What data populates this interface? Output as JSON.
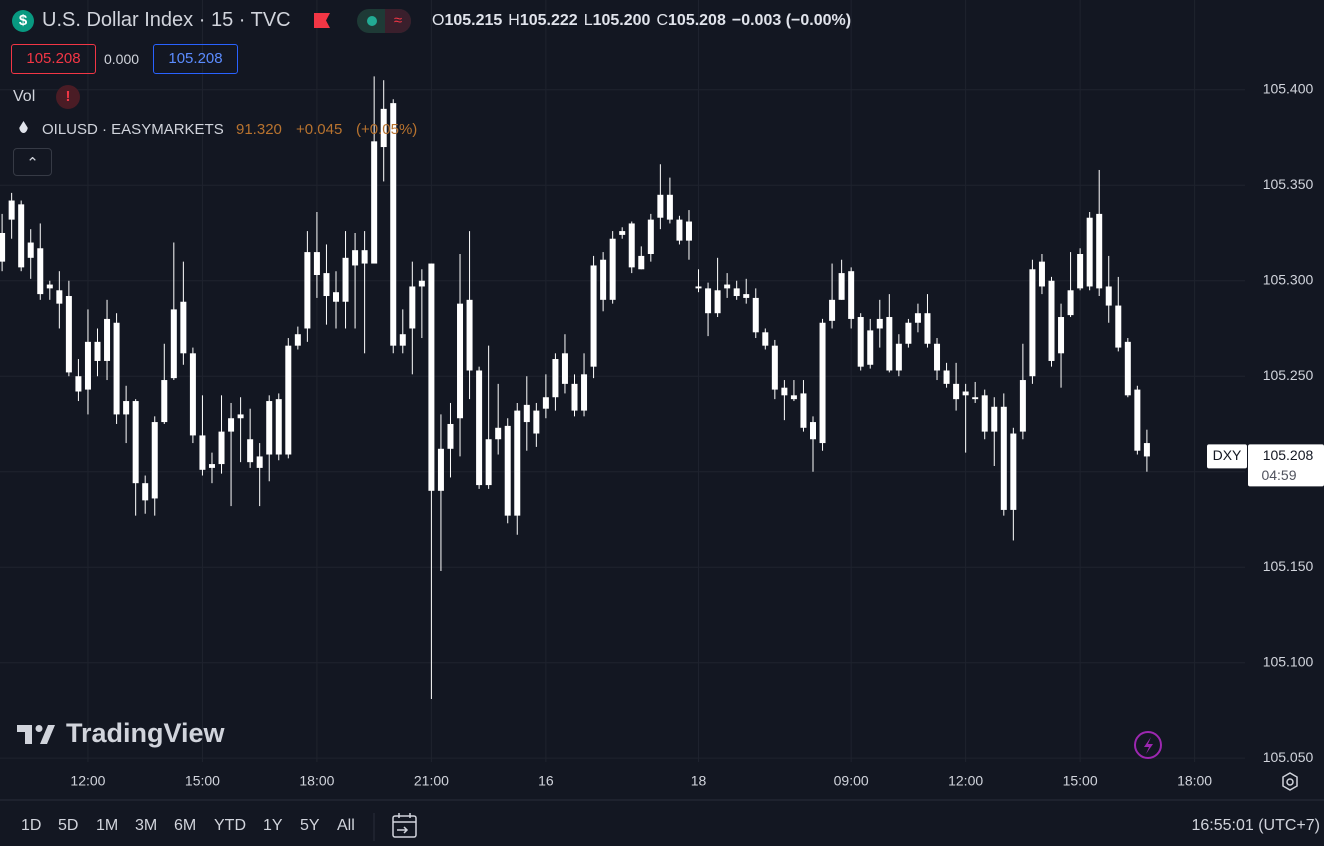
{
  "header": {
    "title": "U.S. Dollar Index · 15 · TVC",
    "ohlc": [
      {
        "label": "O",
        "value": "105.215"
      },
      {
        "label": "H",
        "value": "105.222"
      },
      {
        "label": "L",
        "value": "105.200"
      },
      {
        "label": "C",
        "value": "105.208"
      }
    ],
    "change": "−0.003 (−0.00%)",
    "bid": "105.208",
    "spread": "0.000",
    "ask": "105.208",
    "volume_label": "Vol",
    "compare": {
      "name": "OILUSD · EASYMARKETS",
      "price": "91.320",
      "change": "+0.045",
      "change_pct": "(+0.05%)"
    }
  },
  "watermark": "TradingView",
  "toolbar": {
    "ranges": [
      "1D",
      "5D",
      "1M",
      "3M",
      "6M",
      "YTD",
      "1Y",
      "5Y",
      "All"
    ],
    "clock": "16:55:01 (UTC+7)"
  },
  "chart_data": {
    "type": "candlestick",
    "color": "#ffffff",
    "grid": true,
    "categories": [
      null,
      null,
      null,
      null,
      null,
      null,
      null,
      null,
      null,
      "12:00",
      null,
      null,
      null,
      null,
      null,
      null,
      null,
      null,
      null,
      null,
      null,
      "15:00",
      null,
      null,
      null,
      null,
      null,
      null,
      null,
      null,
      null,
      null,
      null,
      "18:00",
      null,
      null,
      null,
      null,
      null,
      null,
      null,
      null,
      null,
      null,
      null,
      "21:00",
      null,
      null,
      null,
      null,
      null,
      null,
      null,
      null,
      null,
      null,
      null,
      "16",
      null,
      null,
      null,
      null,
      null,
      null,
      null,
      null,
      null,
      null,
      null,
      null,
      null,
      null,
      null,
      "18",
      null,
      null,
      null,
      null,
      null,
      null,
      null,
      null,
      null,
      null,
      null,
      null,
      null,
      null,
      null,
      "09:00",
      null,
      null,
      null,
      null,
      null,
      null,
      null,
      null,
      null,
      null,
      null,
      "12:00",
      null,
      null,
      null,
      null,
      null,
      null,
      null,
      null,
      null,
      null,
      null,
      "15:00",
      null,
      null,
      null,
      null,
      null,
      null,
      null,
      null,
      null,
      null,
      null,
      "18:00"
    ],
    "open": [
      105.325,
      105.332,
      105.34,
      105.312,
      105.317,
      105.296,
      105.295,
      105.292,
      105.25,
      105.243,
      105.268,
      105.258,
      105.278,
      105.23,
      105.237,
      105.194,
      105.186,
      105.226,
      105.249,
      105.289,
      105.262,
      105.219,
      105.202,
      105.204,
      105.221,
      105.228,
      105.217,
      105.208,
      105.209,
      105.238,
      105.209,
      105.266,
      105.275,
      105.315,
      105.304,
      105.294,
      105.289,
      105.308,
      105.316,
      105.309,
      105.37,
      105.393,
      105.266,
      105.275,
      105.297,
      105.309,
      105.19,
      105.212,
      105.228,
      105.29,
      105.253,
      105.193,
      105.217,
      105.224,
      105.177,
      105.235,
      105.22,
      105.233,
      105.239,
      105.262,
      105.246,
      105.232,
      105.255,
      105.311,
      105.29,
      105.324,
      105.33,
      105.306,
      105.314,
      105.333,
      105.345,
      105.332,
      105.321,
      105.296,
      105.296,
      105.283,
      105.298,
      105.296,
      105.293,
      105.291,
      105.273,
      105.266,
      105.244,
      105.24,
      105.241,
      105.226,
      105.215,
      105.279,
      105.29,
      105.305,
      105.281,
      105.256,
      105.275,
      105.281,
      105.253,
      105.267,
      105.278,
      105.283,
      105.267,
      105.253,
      105.246,
      105.242,
      105.239,
      105.24,
      105.221,
      105.234,
      105.18,
      105.221,
      105.25,
      105.31,
      105.3,
      105.262,
      105.282,
      105.296,
      105.297,
      105.335,
      105.297,
      105.287,
      105.268,
      105.243,
      105.215,
      null,
      null,
      null,
      null,
      null
    ],
    "high": [
      105.335,
      105.346,
      105.342,
      105.327,
      105.33,
      105.3,
      105.305,
      105.3,
      105.259,
      105.285,
      105.275,
      105.29,
      105.283,
      105.245,
      105.238,
      105.198,
      105.229,
      105.267,
      105.32,
      105.31,
      105.265,
      105.24,
      105.21,
      105.24,
      105.236,
      105.239,
      105.233,
      105.215,
      105.24,
      105.241,
      105.27,
      105.276,
      105.326,
      105.336,
      105.319,
      105.305,
      105.326,
      105.325,
      105.326,
      105.407,
      105.405,
      105.395,
      105.285,
      105.31,
      105.306,
      105.309,
      105.23,
      105.236,
      105.314,
      105.326,
      105.255,
      105.266,
      105.246,
      105.228,
      105.236,
      105.25,
      105.236,
      105.251,
      105.262,
      105.272,
      105.251,
      105.262,
      105.313,
      105.315,
      105.326,
      105.328,
      105.331,
      105.318,
      105.335,
      105.361,
      105.354,
      105.334,
      105.337,
      105.306,
      105.299,
      105.312,
      105.304,
      105.3,
      105.301,
      105.296,
      105.275,
      105.269,
      105.248,
      105.248,
      105.248,
      105.229,
      105.28,
      105.309,
      105.311,
      105.307,
      105.283,
      105.28,
      105.29,
      105.293,
      105.272,
      105.28,
      105.288,
      105.293,
      105.27,
      105.257,
      105.257,
      105.246,
      105.247,
      105.243,
      105.239,
      105.241,
      105.223,
      105.267,
      105.311,
      105.314,
      105.302,
      105.288,
      105.315,
      105.317,
      105.336,
      105.358,
      105.313,
      105.302,
      105.27,
      105.245,
      105.222,
      null,
      null,
      null,
      null,
      null
    ],
    "low": [
      105.305,
      105.322,
      105.305,
      105.301,
      105.29,
      105.29,
      105.275,
      105.25,
      105.237,
      105.23,
      105.25,
      105.248,
      105.225,
      105.215,
      105.177,
      105.178,
      105.177,
      105.225,
      105.248,
      105.256,
      105.215,
      105.198,
      105.194,
      105.199,
      105.182,
      105.205,
      105.202,
      105.182,
      105.195,
      105.206,
      105.207,
      105.264,
      105.268,
      105.291,
      105.277,
      105.275,
      105.275,
      105.275,
      105.262,
      105.309,
      105.352,
      105.262,
      105.262,
      105.251,
      105.27,
      105.081,
      105.148,
      105.197,
      105.208,
      105.238,
      105.191,
      105.191,
      105.209,
      105.173,
      105.167,
      105.211,
      105.213,
      105.228,
      105.232,
      105.241,
      105.229,
      105.229,
      105.249,
      105.284,
      105.288,
      105.322,
      105.304,
      105.306,
      105.31,
      105.327,
      105.33,
      105.319,
      105.311,
      105.294,
      105.271,
      105.281,
      105.291,
      105.29,
      105.288,
      105.27,
      105.264,
      105.238,
      105.227,
      105.237,
      105.221,
      105.2,
      105.211,
      105.275,
      105.29,
      105.275,
      105.253,
      105.254,
      105.265,
      105.252,
      105.25,
      105.265,
      105.273,
      105.265,
      105.248,
      105.244,
      105.232,
      105.21,
      105.236,
      105.217,
      105.203,
      105.177,
      105.164,
      105.217,
      105.246,
      105.293,
      105.255,
      105.244,
      105.281,
      105.295,
      105.295,
      105.292,
      105.278,
      105.263,
      105.239,
      105.209,
      105.2,
      null,
      null,
      null,
      null,
      null
    ],
    "close": [
      105.31,
      105.342,
      105.307,
      105.32,
      105.293,
      105.298,
      105.288,
      105.252,
      105.242,
      105.268,
      105.258,
      105.28,
      105.23,
      105.237,
      105.194,
      105.185,
      105.226,
      105.248,
      105.285,
      105.262,
      105.219,
      105.201,
      105.204,
      105.221,
      105.228,
      105.23,
      105.205,
      105.202,
      105.237,
      105.209,
      105.266,
      105.272,
      105.315,
      105.303,
      105.292,
      105.289,
      105.312,
      105.316,
      105.309,
      105.373,
      105.39,
      105.266,
      105.272,
      105.297,
      105.3,
      105.19,
      105.212,
      105.225,
      105.288,
      105.253,
      105.193,
      105.217,
      105.223,
      105.177,
      105.232,
      105.226,
      105.232,
      105.239,
      105.259,
      105.246,
      105.232,
      105.251,
      105.308,
      105.29,
      105.322,
      105.326,
      105.307,
      105.313,
      105.332,
      105.345,
      105.332,
      105.321,
      105.331,
      105.297,
      105.283,
      105.295,
      105.296,
      105.292,
      105.291,
      105.273,
      105.266,
      105.243,
      105.24,
      105.238,
      105.223,
      105.217,
      105.278,
      105.29,
      105.304,
      105.28,
      105.255,
      105.274,
      105.28,
      105.253,
      105.267,
      105.278,
      105.283,
      105.267,
      105.253,
      105.246,
      105.238,
      105.24,
      105.238,
      105.221,
      105.234,
      105.18,
      105.22,
      105.248,
      105.306,
      105.297,
      105.258,
      105.281,
      105.295,
      105.314,
      105.333,
      105.296,
      105.287,
      105.265,
      105.24,
      105.211,
      105.208,
      null,
      null,
      null,
      null,
      null
    ],
    "ylim": [
      105.048,
      105.447
    ],
    "yticks": [
      {
        "value": 105.05,
        "label": "105.050"
      },
      {
        "value": 105.1,
        "label": "105.100"
      },
      {
        "value": 105.15,
        "label": "105.150"
      },
      {
        "value": 105.2,
        "label": "105.200"
      },
      {
        "value": 105.25,
        "label": "105.250"
      },
      {
        "value": 105.3,
        "label": "105.300"
      },
      {
        "value": 105.35,
        "label": "105.350"
      },
      {
        "value": 105.4,
        "label": "105.400"
      }
    ],
    "last_price": {
      "name": "DXY",
      "value": 105.208,
      "label": "105.208",
      "countdown": "04:59"
    }
  }
}
